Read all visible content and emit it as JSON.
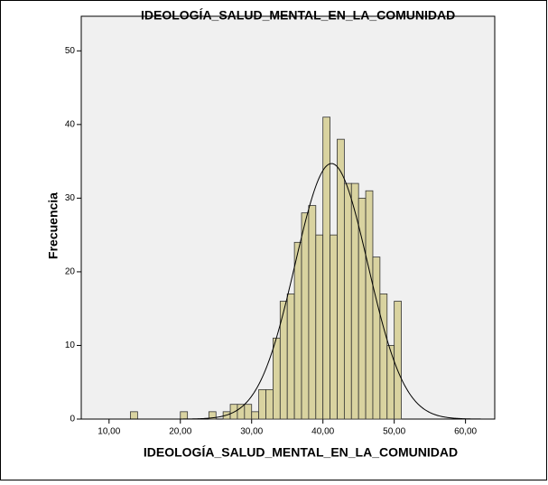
{
  "chart_data": {
    "type": "histogram",
    "title": "IDEOLOGÍA_SALUD_MENTAL_EN_LA_COMUNIDAD",
    "xlabel": "IDEOLOGÍA_SALUD_MENTAL_EN_LA_COMUNIDAD",
    "ylabel": "Frecuencia",
    "bins": [
      13,
      14,
      15,
      16,
      17,
      18,
      19,
      20,
      21,
      22,
      23,
      24,
      25,
      26,
      27,
      28,
      29,
      30,
      31,
      32,
      33,
      34,
      35,
      36,
      37,
      38,
      39,
      40,
      41,
      42,
      43,
      44,
      45,
      46,
      47,
      48,
      49,
      50,
      51
    ],
    "values": [
      1,
      0,
      0,
      0,
      0,
      0,
      0,
      1,
      0,
      0,
      0,
      1,
      0,
      1,
      2,
      2,
      2,
      1,
      4,
      4,
      11,
      16,
      17,
      24,
      28,
      29,
      25,
      41,
      25,
      38,
      32,
      32,
      30,
      31,
      22,
      17,
      10,
      16
    ],
    "color": "#d9d3a0",
    "normal_curve": {
      "mean": 41.2,
      "sd": 5.1,
      "peak": 34.7
    },
    "xlim": [
      6.1,
      64.1
    ],
    "ylim": [
      0,
      54.7
    ],
    "xticks": [
      {
        "value": 10,
        "label": "10,00"
      },
      {
        "value": 20,
        "label": "20,00"
      },
      {
        "value": 30,
        "label": "30,00"
      },
      {
        "value": 40,
        "label": "40,00"
      },
      {
        "value": 50,
        "label": "50,00"
      },
      {
        "value": 60,
        "label": "60,00"
      }
    ],
    "yticks": [
      0,
      10,
      20,
      30,
      40,
      50
    ]
  }
}
